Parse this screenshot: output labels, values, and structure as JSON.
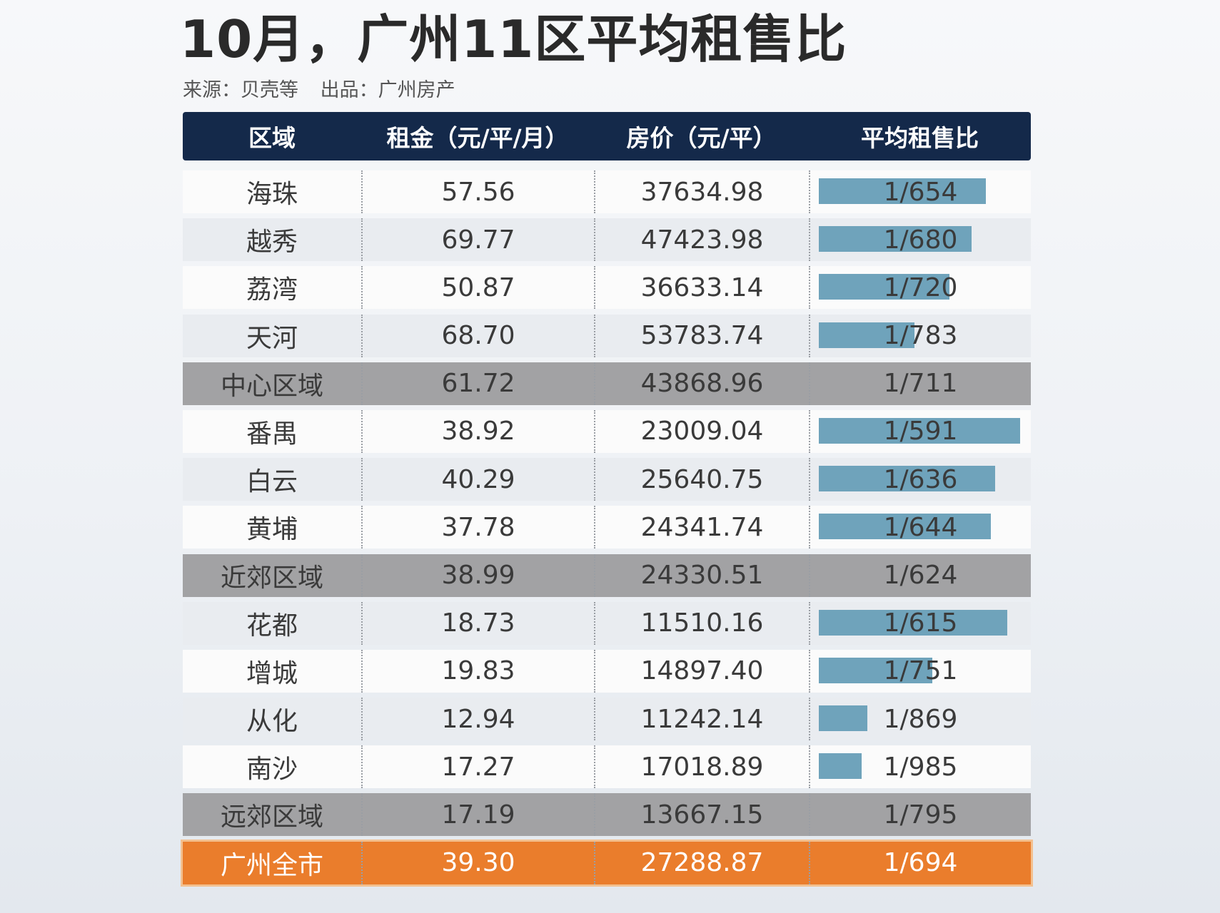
{
  "title": "10月，广州11区平均租售比",
  "subtitle": {
    "source": "来源：贝壳等",
    "producer": "出品：广州房产"
  },
  "chart_data": {
    "type": "table",
    "columns": [
      "区域",
      "租金（元/平/月）",
      "房价（元/平）",
      "平均租售比"
    ],
    "rows": [
      {
        "region": "海珠",
        "rent": "57.56",
        "price": "37634.98",
        "ratio": "1/654",
        "ratio_value": 654,
        "kind": "district"
      },
      {
        "region": "越秀",
        "rent": "69.77",
        "price": "47423.98",
        "ratio": "1/680",
        "ratio_value": 680,
        "kind": "district"
      },
      {
        "region": "荔湾",
        "rent": "50.87",
        "price": "36633.14",
        "ratio": "1/720",
        "ratio_value": 720,
        "kind": "district"
      },
      {
        "region": "天河",
        "rent": "68.70",
        "price": "53783.74",
        "ratio": "1/783",
        "ratio_value": 783,
        "kind": "district"
      },
      {
        "region": "中心区域",
        "rent": "61.72",
        "price": "43868.96",
        "ratio": "1/711",
        "ratio_value": 711,
        "kind": "subtotal"
      },
      {
        "region": "番禺",
        "rent": "38.92",
        "price": "23009.04",
        "ratio": "1/591",
        "ratio_value": 591,
        "kind": "district"
      },
      {
        "region": "白云",
        "rent": "40.29",
        "price": "25640.75",
        "ratio": "1/636",
        "ratio_value": 636,
        "kind": "district"
      },
      {
        "region": "黄埔",
        "rent": "37.78",
        "price": "24341.74",
        "ratio": "1/644",
        "ratio_value": 644,
        "kind": "district"
      },
      {
        "region": "近郊区域",
        "rent": "38.99",
        "price": "24330.51",
        "ratio": "1/624",
        "ratio_value": 624,
        "kind": "subtotal"
      },
      {
        "region": "花都",
        "rent": "18.73",
        "price": "11510.16",
        "ratio": "1/615",
        "ratio_value": 615,
        "kind": "district"
      },
      {
        "region": "增城",
        "rent": "19.83",
        "price": "14897.40",
        "ratio": "1/751",
        "ratio_value": 751,
        "kind": "district"
      },
      {
        "region": "从化",
        "rent": "12.94",
        "price": "11242.14",
        "ratio": "1/869",
        "ratio_value": 869,
        "kind": "district"
      },
      {
        "region": "南沙",
        "rent": "17.27",
        "price": "17018.89",
        "ratio": "1/985",
        "ratio_value": 985,
        "kind": "district"
      },
      {
        "region": "远郊区域",
        "rent": "17.19",
        "price": "13667.15",
        "ratio": "1/795",
        "ratio_value": 795,
        "kind": "subtotal"
      },
      {
        "region": "广州全市",
        "rent": "39.30",
        "price": "27288.87",
        "ratio": "1/694",
        "ratio_value": 694,
        "kind": "total"
      }
    ]
  },
  "colors": {
    "header_bg": "#14294a",
    "bar": "#6fa3bb",
    "subtotal_row": "#a2a2a4",
    "total_row": "#ea7d2c"
  }
}
